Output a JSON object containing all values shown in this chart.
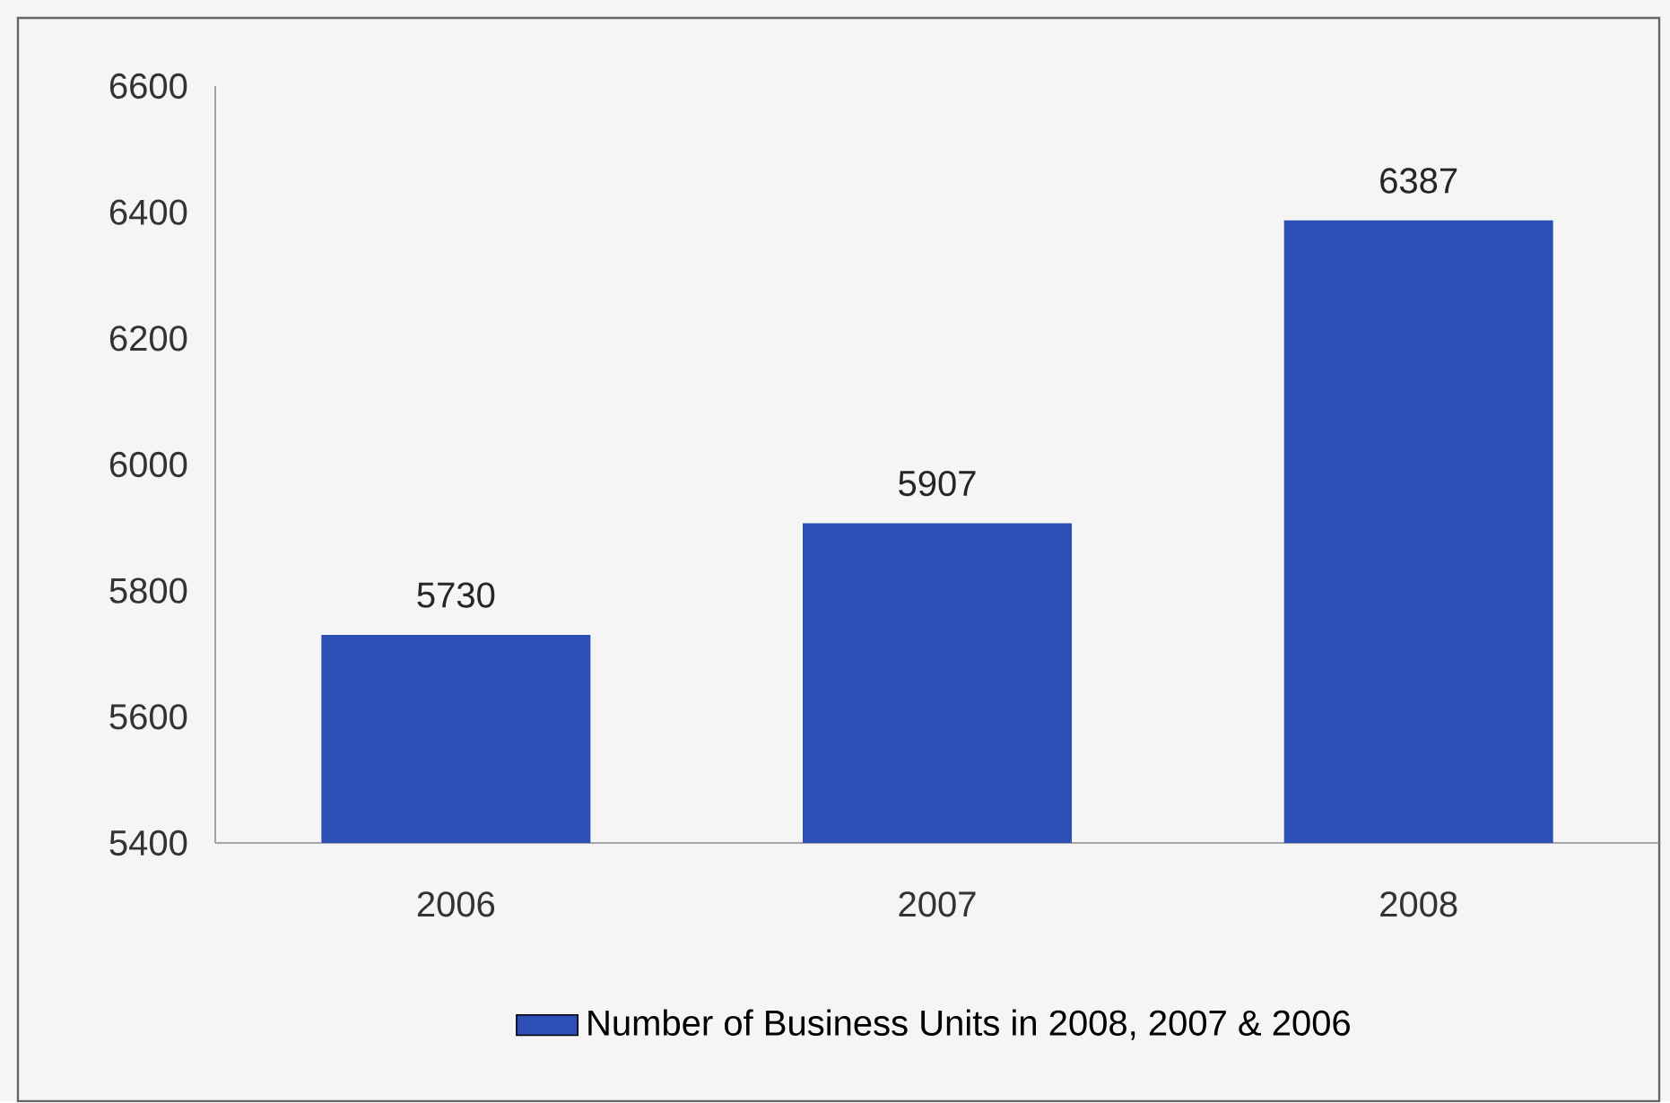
{
  "chart_data": {
    "type": "bar",
    "categories": [
      "2006",
      "2007",
      "2008"
    ],
    "series": [
      {
        "name": "Number of Business Units in 2008, 2007 & 2006",
        "color": "#2b4fb5",
        "values": [
          5730,
          5907,
          6387
        ]
      }
    ],
    "ylim": [
      5400,
      6600
    ],
    "yticks": [
      5400,
      5600,
      5800,
      6000,
      6200,
      6400,
      6600
    ],
    "data_labels": true,
    "legend": "bottom",
    "grid": false
  }
}
